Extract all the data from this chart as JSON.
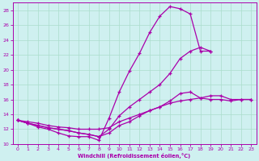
{
  "xlabel": "Windchill (Refroidissement éolien,°C)",
  "xlim": [
    -0.5,
    23.5
  ],
  "ylim": [
    10,
    29
  ],
  "xticks": [
    0,
    1,
    2,
    3,
    4,
    5,
    6,
    7,
    8,
    9,
    10,
    11,
    12,
    13,
    14,
    15,
    16,
    17,
    18,
    19,
    20,
    21,
    22,
    23
  ],
  "yticks": [
    10,
    12,
    14,
    16,
    18,
    20,
    22,
    24,
    26,
    28
  ],
  "background_color": "#cff0f0",
  "line_color": "#aa00aa",
  "grid_color": "#aaddcc",
  "line1_x": [
    0,
    1,
    2,
    3,
    4,
    5,
    6,
    7,
    8,
    9,
    10,
    11,
    12,
    13,
    14,
    15,
    16,
    17,
    18,
    19
  ],
  "line1_y": [
    13.2,
    12.8,
    12.3,
    12.0,
    11.5,
    11.1,
    11.0,
    11.0,
    10.5,
    13.5,
    17.0,
    19.8,
    22.2,
    25.0,
    27.2,
    28.5,
    28.2,
    27.5,
    22.5,
    22.5
  ],
  "line2_x": [
    0,
    1,
    2,
    3,
    4,
    5,
    6,
    7,
    8,
    9,
    10,
    11,
    12,
    13,
    14,
    15,
    16,
    17,
    18,
    19,
    20,
    21,
    22,
    23
  ],
  "line2_y": [
    13.2,
    12.8,
    12.5,
    12.2,
    12.0,
    11.8,
    11.5,
    11.3,
    11.0,
    12.0,
    13.8,
    15.0,
    16.0,
    17.0,
    18.0,
    19.5,
    21.5,
    22.5,
    23.0,
    22.5,
    null,
    null,
    null,
    null
  ],
  "line3_x": [
    0,
    1,
    2,
    3,
    4,
    5,
    6,
    7,
    8,
    9,
    10,
    11,
    12,
    13,
    14,
    15,
    16,
    17,
    18,
    19,
    20,
    21,
    22,
    23
  ],
  "line3_y": [
    13.2,
    12.8,
    12.5,
    12.2,
    12.0,
    11.8,
    11.5,
    11.3,
    11.0,
    11.5,
    12.5,
    13.0,
    13.8,
    14.5,
    15.0,
    15.8,
    16.8,
    17.0,
    16.2,
    16.0,
    16.0,
    15.8,
    16.0,
    16.0
  ],
  "line4_x": [
    0,
    1,
    2,
    3,
    4,
    5,
    6,
    7,
    8,
    9,
    10,
    11,
    12,
    13,
    14,
    15,
    16,
    17,
    18,
    19,
    20,
    21,
    22,
    23
  ],
  "line4_y": [
    13.2,
    13.0,
    12.8,
    12.5,
    12.3,
    12.2,
    12.0,
    12.0,
    12.0,
    12.2,
    13.0,
    13.5,
    14.0,
    14.5,
    15.0,
    15.5,
    15.8,
    16.0,
    16.2,
    16.5,
    16.5,
    16.0,
    16.0,
    16.0
  ]
}
